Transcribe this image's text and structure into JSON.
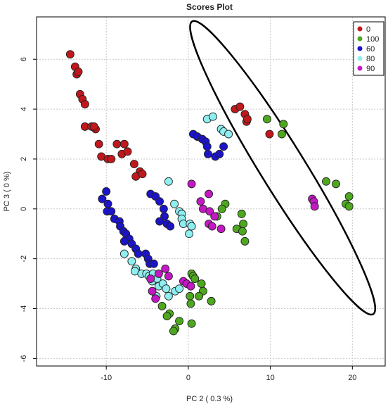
{
  "chart_data": {
    "type": "scatter",
    "title": "Scores Plot",
    "xlabel": "PC 2 ( 0.3 %)",
    "ylabel": "PC 3 ( 0 %)",
    "xlim": [
      -18.5,
      24
    ],
    "ylim": [
      -6.3,
      7.7
    ],
    "x_ticks": [
      -10,
      0,
      10,
      20
    ],
    "y_ticks": [
      6,
      4,
      2,
      0,
      -2,
      -4,
      -6
    ],
    "grid": true,
    "legend_position": "top-right",
    "series": [
      {
        "name": "0",
        "color": "#c0181c",
        "points": [
          [
            -14.4,
            6.2
          ],
          [
            -13.8,
            5.7
          ],
          [
            -13.6,
            5.4
          ],
          [
            -13.4,
            5.5
          ],
          [
            -13.2,
            4.6
          ],
          [
            -12.9,
            4.4
          ],
          [
            -12.6,
            4.2
          ],
          [
            -12.6,
            3.3
          ],
          [
            -11.8,
            3.3
          ],
          [
            -11.3,
            3.2
          ],
          [
            -11.5,
            3.3
          ],
          [
            -10.9,
            2.6
          ],
          [
            -10.6,
            2.1
          ],
          [
            -9.8,
            2.0
          ],
          [
            -9.4,
            2.0
          ],
          [
            -8.7,
            2.6
          ],
          [
            -7.8,
            2.6
          ],
          [
            -8.1,
            2.2
          ],
          [
            -7.4,
            2.3
          ],
          [
            -6.6,
            1.8
          ],
          [
            -5.9,
            1.5
          ],
          [
            -6.4,
            1.3
          ],
          [
            -5.6,
            1.4
          ],
          [
            5.7,
            4.0
          ],
          [
            6.3,
            4.1
          ],
          [
            6.9,
            3.8
          ],
          [
            7.1,
            3.5
          ],
          [
            7.2,
            3.6
          ],
          [
            9.9,
            3.0
          ]
        ]
      },
      {
        "name": "100",
        "color": "#4ea81f",
        "points": [
          [
            9.6,
            3.6
          ],
          [
            11.6,
            3.4
          ],
          [
            11.4,
            3.0
          ],
          [
            16.8,
            1.1
          ],
          [
            18.0,
            1.0
          ],
          [
            19.6,
            0.5
          ],
          [
            19.2,
            0.2
          ],
          [
            19.6,
            0.1
          ],
          [
            4.5,
            0.2
          ],
          [
            4.1,
            0.0
          ],
          [
            3.5,
            -0.3
          ],
          [
            6.5,
            -0.2
          ],
          [
            6.7,
            -0.6
          ],
          [
            5.9,
            -0.8
          ],
          [
            6.6,
            -0.9
          ],
          [
            6.9,
            -1.3
          ],
          [
            0.4,
            -2.6
          ],
          [
            0.6,
            -2.7
          ],
          [
            0.8,
            -2.8
          ],
          [
            1.6,
            -3.0
          ],
          [
            1.8,
            -3.3
          ],
          [
            1.3,
            -3.5
          ],
          [
            0.2,
            -3.5
          ],
          [
            2.8,
            -3.7
          ],
          [
            0.3,
            -3.8
          ],
          [
            -3.2,
            -3.9
          ],
          [
            -2.3,
            -4.2
          ],
          [
            -2.6,
            -4.3
          ],
          [
            -1.1,
            -4.5
          ],
          [
            0.4,
            -4.6
          ],
          [
            -1.6,
            -4.8
          ],
          [
            -1.8,
            -4.9
          ]
        ]
      },
      {
        "name": "60",
        "color": "#1c14c8",
        "points": [
          [
            -10.0,
            0.7
          ],
          [
            -10.5,
            0.4
          ],
          [
            -9.8,
            0.2
          ],
          [
            -9.9,
            -0.1
          ],
          [
            -9.4,
            -0.1
          ],
          [
            -9.0,
            -0.4
          ],
          [
            -8.4,
            -0.5
          ],
          [
            -8.3,
            -0.7
          ],
          [
            -7.9,
            -0.9
          ],
          [
            -7.6,
            -1.0
          ],
          [
            -7.2,
            -1.2
          ],
          [
            -7.8,
            -1.3
          ],
          [
            -6.9,
            -1.4
          ],
          [
            -6.4,
            -1.6
          ],
          [
            -6.1,
            -1.8
          ],
          [
            -5.2,
            -1.8
          ],
          [
            -4.9,
            -2.0
          ],
          [
            -4.7,
            -2.2
          ],
          [
            -4.2,
            -2.2
          ],
          [
            -4.6,
            0.6
          ],
          [
            -4.0,
            0.5
          ],
          [
            -3.5,
            0.3
          ],
          [
            -3.0,
            0.0
          ],
          [
            -2.9,
            -0.3
          ],
          [
            -3.5,
            -0.5
          ],
          [
            -2.6,
            -0.6
          ],
          [
            -2.2,
            -0.7
          ],
          [
            0.6,
            3.0
          ],
          [
            1.1,
            2.9
          ],
          [
            1.7,
            2.8
          ],
          [
            2.1,
            2.7
          ],
          [
            2.3,
            2.5
          ],
          [
            2.4,
            2.2
          ],
          [
            3.3,
            2.1
          ],
          [
            3.8,
            2.2
          ],
          [
            4.3,
            2.5
          ]
        ]
      },
      {
        "name": "80",
        "color": "#8eeef0",
        "points": [
          [
            2.3,
            3.6
          ],
          [
            3.0,
            3.7
          ],
          [
            4.0,
            3.2
          ],
          [
            4.3,
            3.1
          ],
          [
            4.9,
            3.0
          ],
          [
            -2.4,
            1.1
          ],
          [
            -1.7,
            0.2
          ],
          [
            -1.1,
            -0.1
          ],
          [
            -0.8,
            -0.2
          ],
          [
            -0.8,
            -0.4
          ],
          [
            -0.6,
            -0.6
          ],
          [
            0.2,
            -0.6
          ],
          [
            0.4,
            -0.7
          ],
          [
            0.1,
            -1.0
          ],
          [
            -7.8,
            -1.8
          ],
          [
            -6.9,
            -2.1
          ],
          [
            -6.4,
            -2.4
          ],
          [
            -6.5,
            -2.5
          ],
          [
            -5.7,
            -2.6
          ],
          [
            -5.1,
            -2.6
          ],
          [
            -4.8,
            -2.7
          ],
          [
            -4.3,
            -2.6
          ],
          [
            -4.4,
            -2.9
          ],
          [
            -3.8,
            -2.8
          ],
          [
            -3.6,
            -3.1
          ],
          [
            -3.1,
            -3.0
          ],
          [
            -2.7,
            -3.2
          ],
          [
            -3.9,
            -3.5
          ],
          [
            -2.4,
            -3.5
          ],
          [
            -1.6,
            -3.3
          ],
          [
            -1.1,
            -3.2
          ]
        ]
      },
      {
        "name": "90",
        "color": "#c418c4",
        "points": [
          [
            15.1,
            0.4
          ],
          [
            15.3,
            0.3
          ],
          [
            15.4,
            0.1
          ],
          [
            0.4,
            1.0
          ],
          [
            2.5,
            0.6
          ],
          [
            1.5,
            0.3
          ],
          [
            1.8,
            0.0
          ],
          [
            2.6,
            -0.1
          ],
          [
            3.2,
            -0.3
          ],
          [
            2.5,
            -0.6
          ],
          [
            2.9,
            -0.7
          ],
          [
            4.0,
            -0.8
          ],
          [
            -2.8,
            -2.4
          ],
          [
            -2.4,
            -2.7
          ],
          [
            -3.6,
            -2.6
          ],
          [
            -4.6,
            -2.8
          ],
          [
            -4.4,
            -3.3
          ],
          [
            -4.0,
            -3.6
          ],
          [
            -0.6,
            -2.9
          ],
          [
            -0.2,
            -3.0
          ],
          [
            0.3,
            -3.1
          ]
        ]
      }
    ],
    "annotations": [
      {
        "type": "ellipse",
        "center": [
          11.5,
          1.65
        ],
        "semi_major": 12.5,
        "semi_minor": 1.0,
        "angle_deg": -28,
        "stroke": "#000000"
      }
    ]
  }
}
